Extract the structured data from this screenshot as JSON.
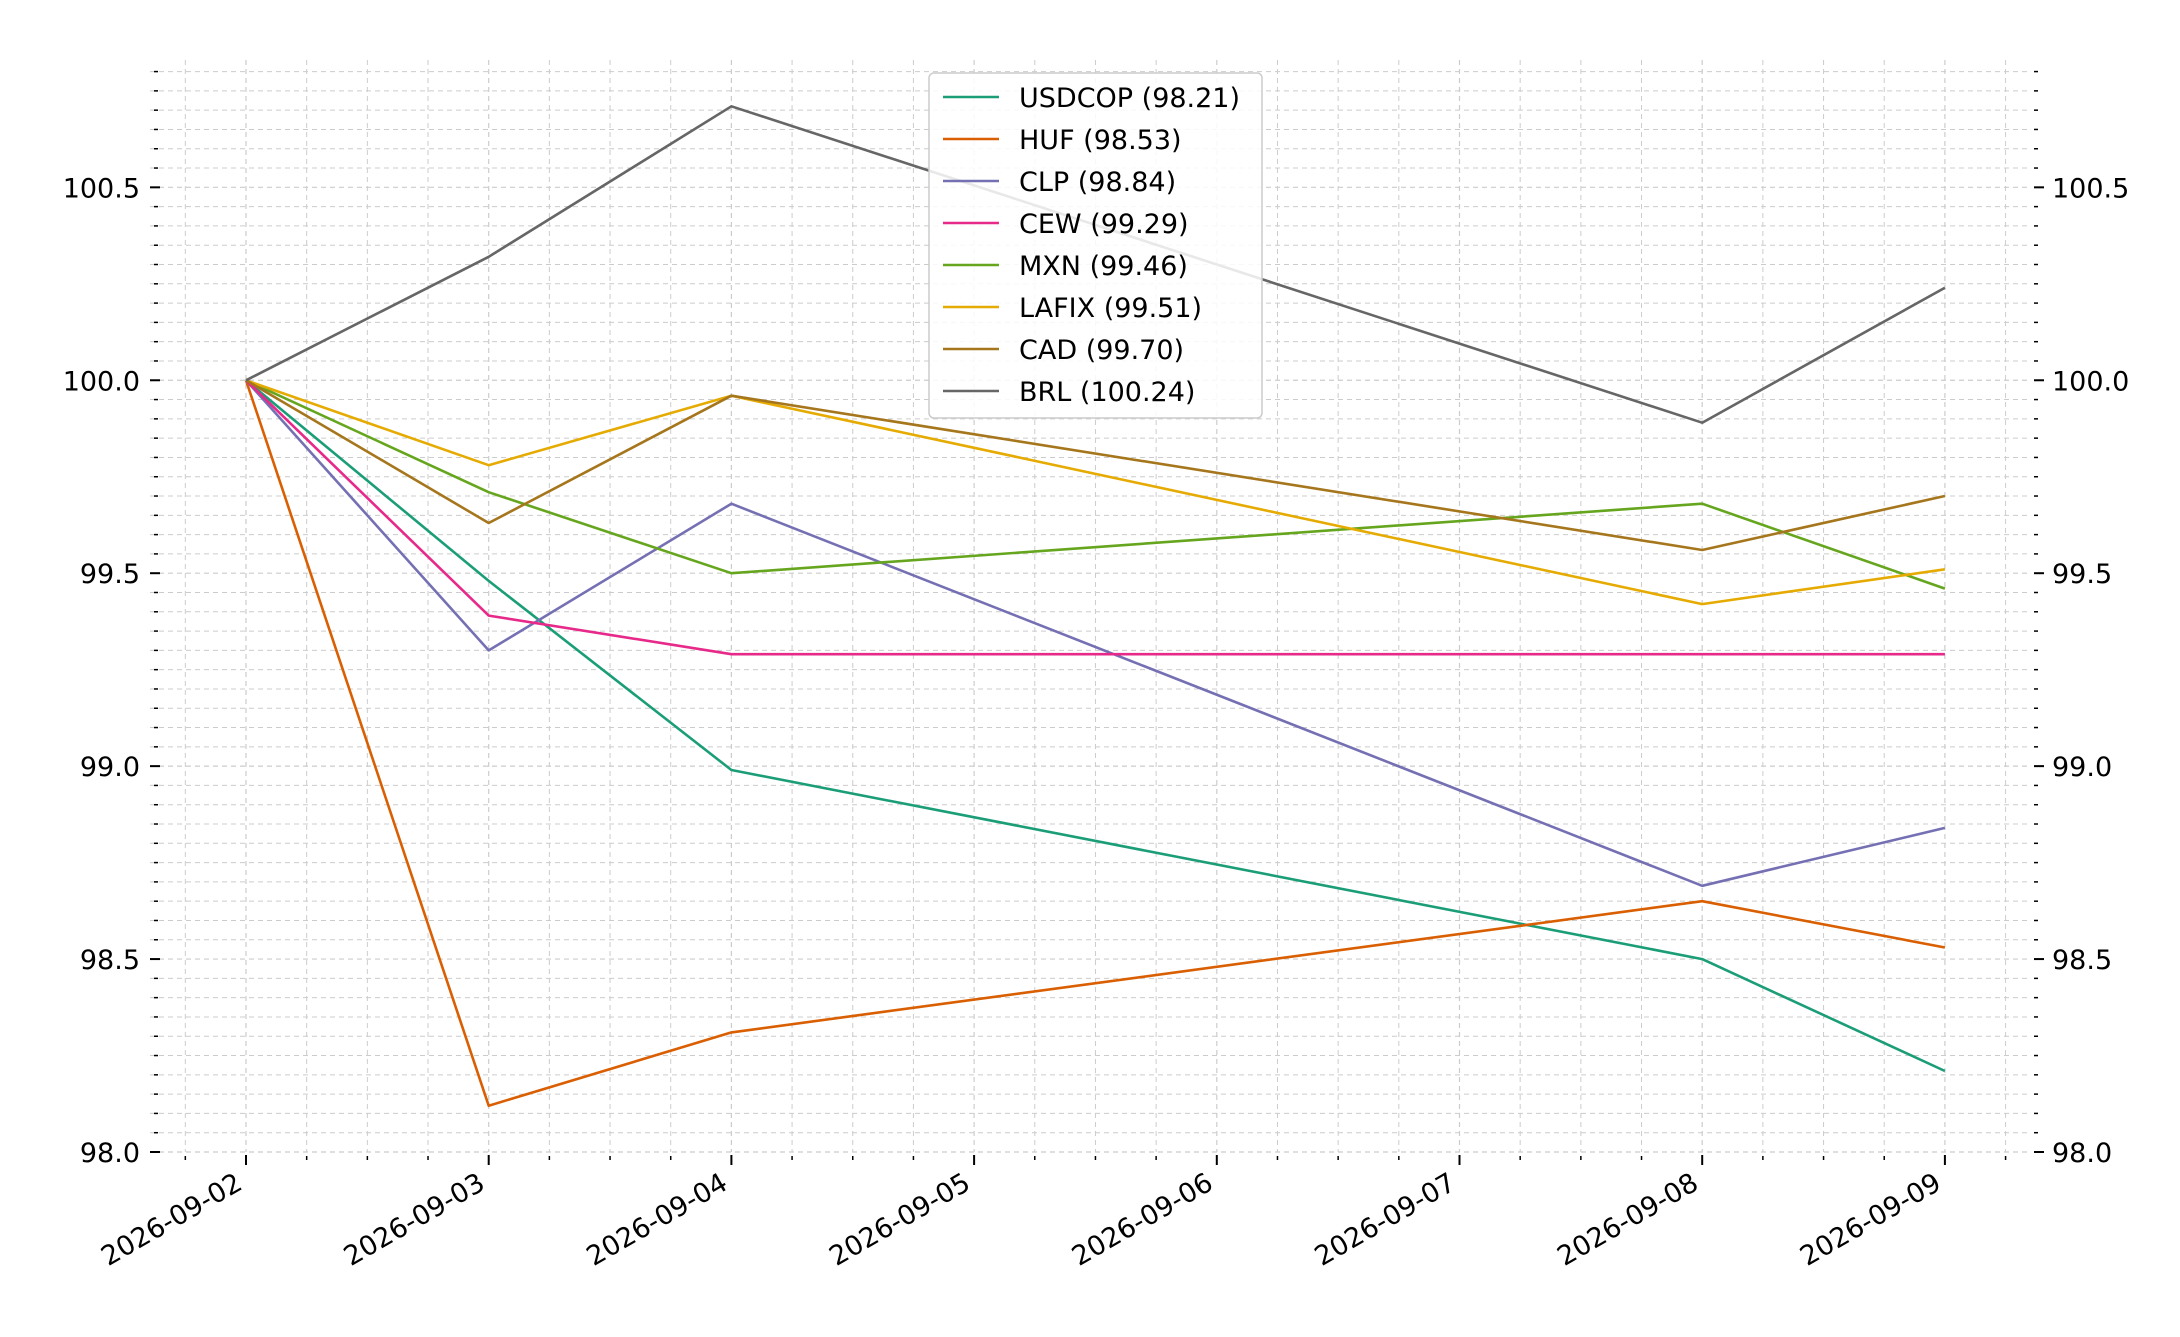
{
  "chart_data": {
    "type": "line",
    "title": "",
    "xlabel": "",
    "ylabel": "",
    "x": [
      "2026-09-02",
      "2026-09-03",
      "2026-09-04",
      "2026-09-08",
      "2026-09-09"
    ],
    "x_ticks": [
      "2026-09-02",
      "2026-09-03",
      "2026-09-04",
      "2026-09-05",
      "2026-09-06",
      "2026-09-07",
      "2026-09-08",
      "2026-09-09"
    ],
    "y_ticks": [
      "98.0",
      "98.5",
      "99.0",
      "99.5",
      "100.0",
      "100.5"
    ],
    "ylim": [
      98.0,
      100.83
    ],
    "grid": true,
    "y_axis_sides": "left and right",
    "legend_position": "top-center",
    "series": [
      {
        "name": "USDCOP (98.21)",
        "color": "#1b9e77",
        "values": [
          100.0,
          99.48,
          98.99,
          98.5,
          98.21
        ]
      },
      {
        "name": "HUF (98.53)",
        "color": "#d95f02",
        "values": [
          100.0,
          98.12,
          98.31,
          98.65,
          98.53
        ]
      },
      {
        "name": "CLP (98.84)",
        "color": "#7570b3",
        "values": [
          100.0,
          99.3,
          99.68,
          98.69,
          98.84
        ]
      },
      {
        "name": "CEW (99.29)",
        "color": "#e7298a",
        "values": [
          100.0,
          99.39,
          99.29,
          99.29,
          99.29
        ]
      },
      {
        "name": "MXN (99.46)",
        "color": "#66a61e",
        "values": [
          100.0,
          99.71,
          99.5,
          99.68,
          99.46
        ]
      },
      {
        "name": "LAFIX (99.51)",
        "color": "#e6ab02",
        "values": [
          100.0,
          99.78,
          99.96,
          99.42,
          99.51
        ]
      },
      {
        "name": "CAD (99.70)",
        "color": "#a6761d",
        "values": [
          100.0,
          99.63,
          99.96,
          99.56,
          99.7
        ]
      },
      {
        "name": "BRL (100.24)",
        "color": "#666666",
        "values": [
          100.0,
          100.32,
          100.71,
          99.89,
          100.24
        ]
      }
    ]
  }
}
